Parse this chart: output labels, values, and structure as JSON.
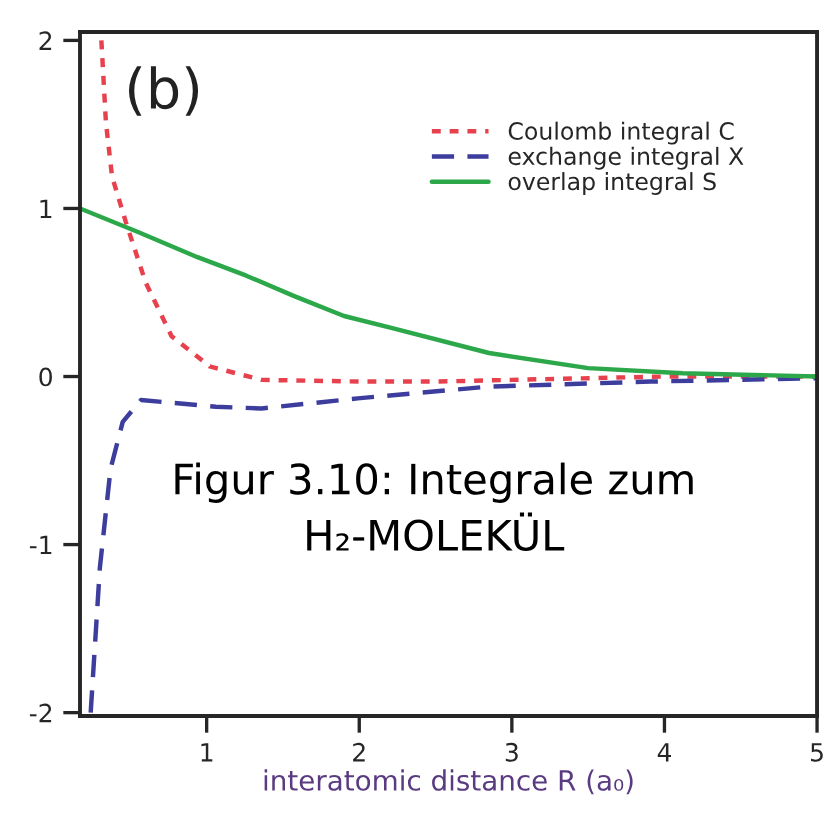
{
  "chart_data": {
    "type": "line",
    "xlabel": "interatomic distance R (a₀)",
    "xlim": [
      0.17,
      5.0
    ],
    "xticks": [
      1,
      2,
      3,
      4,
      5
    ],
    "ylim": [
      -2.02,
      2.05
    ],
    "yticks": [
      -2,
      -1,
      0,
      1,
      2
    ],
    "grid": false,
    "legend": "top right",
    "marker": "none",
    "annotations": [
      "(b)",
      "Figur 3.10: Integrale zum\nH₂-MOLEKÜL"
    ],
    "series": [
      {
        "name": "Coulomb integral C",
        "color": "#e8414e",
        "line_style": "dotted",
        "x": [
          0.31,
          0.34,
          0.38,
          0.47,
          0.6,
          0.77,
          1.02,
          1.36,
          2.0,
          2.5,
          3.0,
          4.0,
          5.0
        ],
        "values": [
          2.0,
          1.51,
          1.19,
          0.92,
          0.56,
          0.24,
          0.06,
          -0.02,
          -0.03,
          -0.03,
          -0.02,
          0.0,
          0.0
        ]
      },
      {
        "name": "exchange integral X",
        "color": "#3d3d9e",
        "line_style": "dashed",
        "x": [
          0.24,
          0.3,
          0.37,
          0.45,
          0.57,
          1.06,
          1.36,
          1.99,
          2.85,
          3.91,
          5.0
        ],
        "values": [
          -2.0,
          -1.14,
          -0.55,
          -0.27,
          -0.14,
          -0.18,
          -0.19,
          -0.13,
          -0.06,
          -0.03,
          -0.01
        ]
      },
      {
        "name": "overlap integral S",
        "color": "#2ca84a",
        "line_style": "solid",
        "x": [
          0.17,
          0.55,
          0.94,
          1.26,
          1.57,
          1.9,
          2.21,
          2.85,
          3.5,
          4.12,
          5.0
        ],
        "values": [
          1.0,
          0.86,
          0.71,
          0.6,
          0.48,
          0.36,
          0.29,
          0.14,
          0.05,
          0.02,
          0.0
        ]
      }
    ]
  }
}
